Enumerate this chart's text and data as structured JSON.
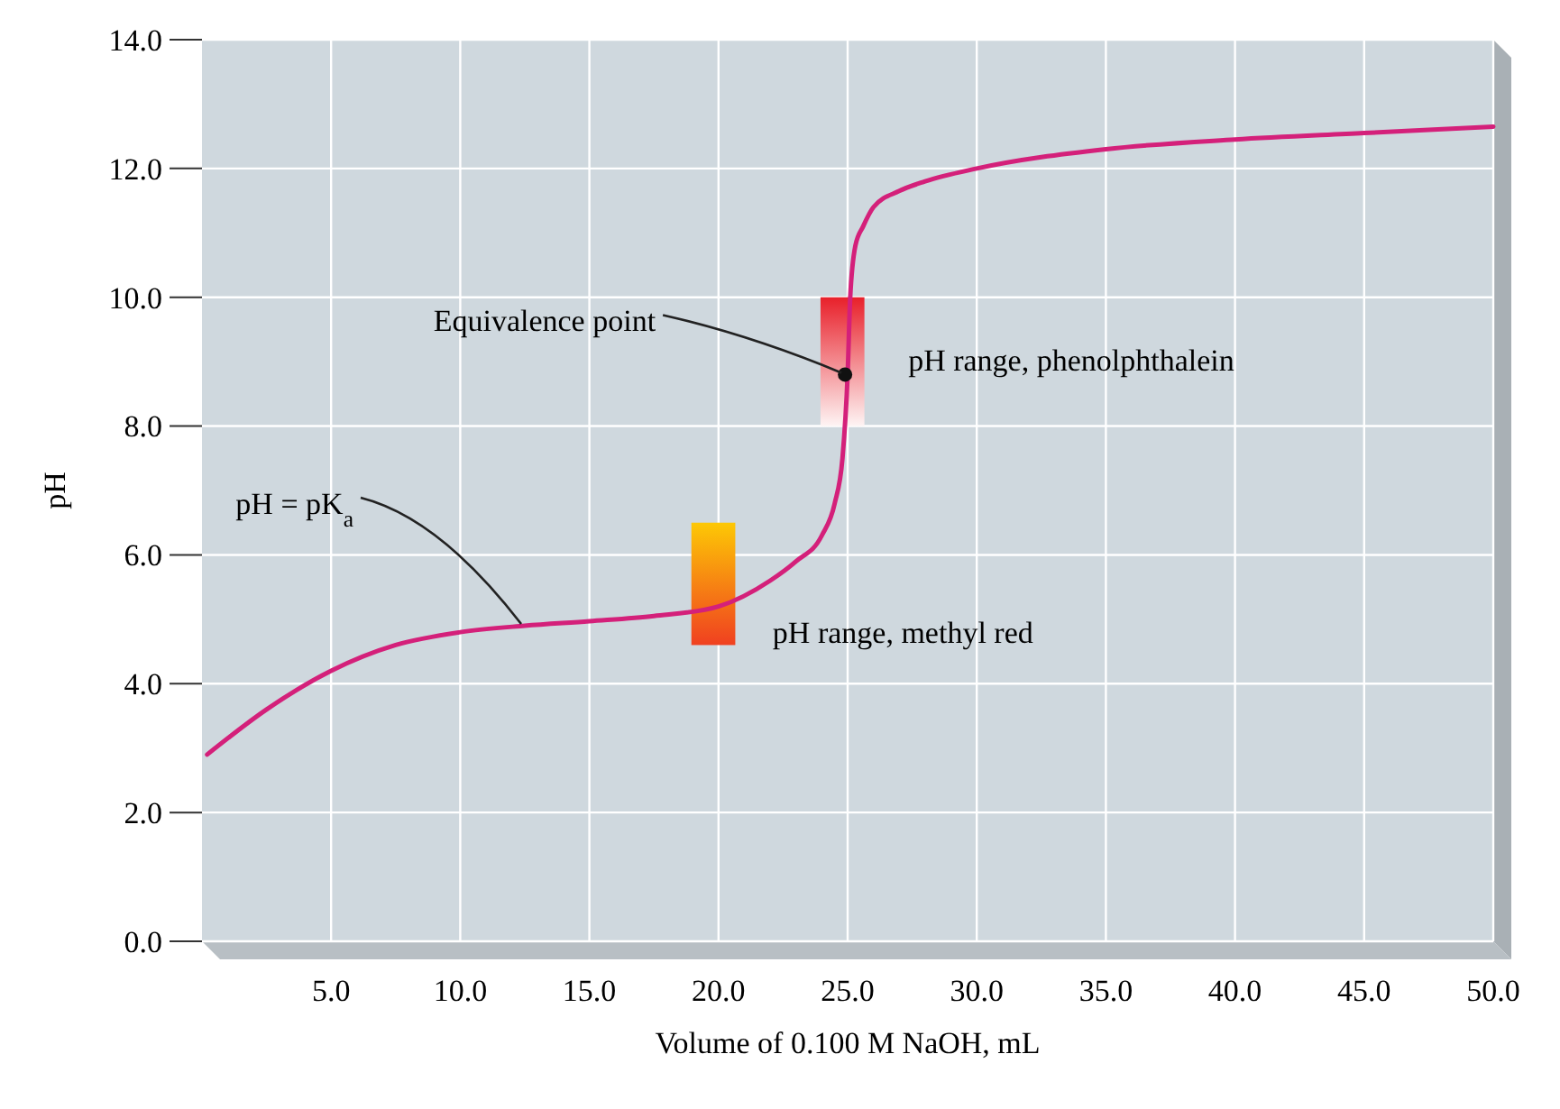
{
  "chart_data": {
    "type": "line",
    "xlabel": "Volume of 0.100 M NaOH, mL",
    "ylabel": "pH",
    "xlim": [
      0,
      50
    ],
    "ylim": [
      0,
      14
    ],
    "xticks": [
      {
        "value": 5,
        "label": "5.0"
      },
      {
        "value": 10,
        "label": "10.0"
      },
      {
        "value": 15,
        "label": "15.0"
      },
      {
        "value": 20,
        "label": "20.0"
      },
      {
        "value": 25,
        "label": "25.0"
      },
      {
        "value": 30,
        "label": "30.0"
      },
      {
        "value": 35,
        "label": "35.0"
      },
      {
        "value": 40,
        "label": "40.0"
      },
      {
        "value": 45,
        "label": "45.0"
      },
      {
        "value": 50,
        "label": "50.0"
      }
    ],
    "yticks": [
      {
        "value": 0,
        "label": "0.0"
      },
      {
        "value": 2,
        "label": "2.0"
      },
      {
        "value": 4,
        "label": "4.0"
      },
      {
        "value": 6,
        "label": "6.0"
      },
      {
        "value": 8,
        "label": "8.0"
      },
      {
        "value": 10,
        "label": "10.0"
      },
      {
        "value": 12,
        "label": "12.0"
      },
      {
        "value": 14,
        "label": "14.0"
      }
    ],
    "grid": true,
    "series": [
      {
        "type": "bar",
        "x": [
          19.8,
          24.8
        ],
        "base": [
          4.6,
          8.0
        ],
        "values": [
          1.9,
          2.0
        ],
        "colors": [
          "#f04020",
          "#e8202a"
        ]
      },
      {
        "color": "#d4207a",
        "x": [
          0.2,
          2.5,
          5,
          7.5,
          10,
          12.5,
          15,
          17.5,
          20,
          22,
          23,
          24,
          24.5,
          24.8,
          25,
          25.1,
          25.3,
          25.6,
          26,
          27,
          28,
          30,
          35,
          40,
          45,
          50
        ],
        "values": [
          2.9,
          3.6,
          4.2,
          4.6,
          4.8,
          4.9,
          4.97,
          5.05,
          5.2,
          5.6,
          5.9,
          6.3,
          6.8,
          7.5,
          8.8,
          10.0,
          10.8,
          11.1,
          11.4,
          11.65,
          11.8,
          12.0,
          12.3,
          12.45,
          12.55,
          12.65
        ]
      },
      {
        "type": "scatter",
        "color": "#111111",
        "x": [
          24.9
        ],
        "values": [
          8.8
        ]
      }
    ],
    "annotations": [
      {
        "text": "Equivalence point",
        "x": 24.9,
        "y": 8.8
      },
      {
        "text": "pH = pK$_{a}$",
        "x": 12.5,
        "y": 4.9
      },
      {
        "text": "pH range, phenolphthalein",
        "x": 25.6,
        "y": 8.8
      },
      {
        "text": "pH range, methyl red",
        "x": 20.7,
        "y": 5.0
      }
    ]
  }
}
